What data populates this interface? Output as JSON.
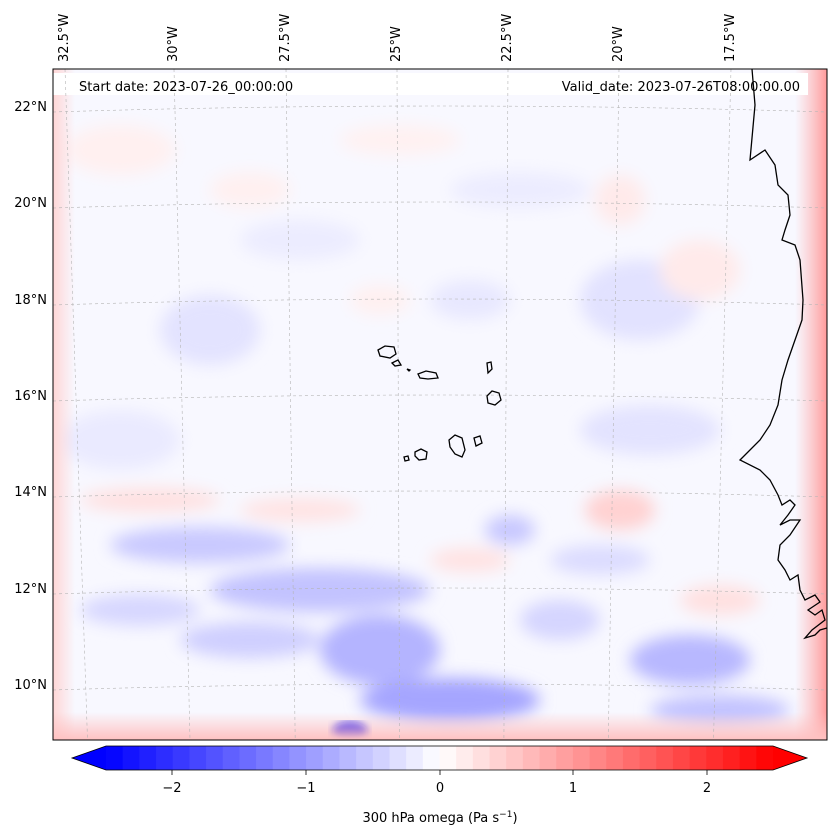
{
  "map": {
    "start_date_label": "Start date: 2023-07-26_00:00:00",
    "valid_date_label": "Valid_date: 2023-07-26T08:00:00.00",
    "lon_labels": [
      "32.5°W",
      "30°W",
      "27.5°W",
      "25°W",
      "22.5°W",
      "20°W",
      "17.5°W"
    ],
    "lat_labels": [
      "22°N",
      "20°N",
      "18°N",
      "16°N",
      "14°N",
      "12°N",
      "10°N"
    ],
    "projection_grid": "dashed gray",
    "field": "300 hPa omega",
    "field_units": "Pa s-1"
  },
  "colorbar": {
    "tick_labels": [
      "−2",
      "−1",
      "0",
      "1",
      "2"
    ],
    "label_main": "300 hPa omega (Pa s",
    "label_sup": "−1",
    "label_close": ")",
    "range": [
      -2.7,
      2.7
    ],
    "cmap": "bwr",
    "extend": "both",
    "colors": {
      "min": "#0000ff",
      "mid": "#ffffff",
      "max": "#ff0000"
    }
  }
}
